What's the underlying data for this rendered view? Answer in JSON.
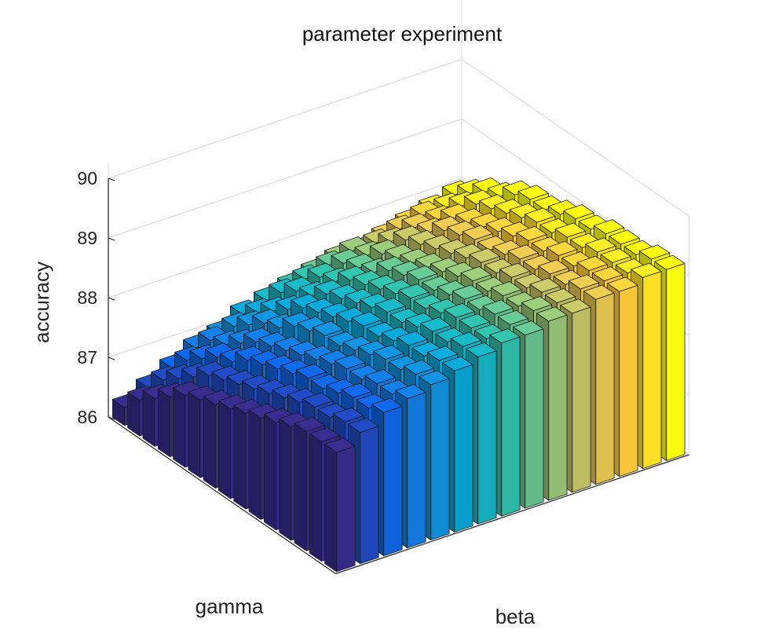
{
  "chart_data": {
    "type": "bar3",
    "title": "parameter experiment",
    "xlabel": "beta",
    "ylabel": "gamma",
    "zlabel": "accuracy",
    "zlim": [
      86,
      90
    ],
    "zticks": [
      "86",
      "87",
      "88",
      "89",
      "90"
    ],
    "grid": true,
    "colormap": "parula",
    "colormap_stops": [
      "#352a87",
      "#0f5cdd",
      "#1481d6",
      "#06a4ca",
      "#2eb7a4",
      "#87bf77",
      "#d1bb59",
      "#fec832",
      "#f9fb0e"
    ],
    "n_beta": 15,
    "n_gamma": 15,
    "values": [
      [
        86.3,
        86.5,
        86.7,
        86.9,
        87.0,
        87.2,
        87.3,
        87.4,
        87.5,
        87.6,
        87.6,
        87.7,
        87.8,
        87.9,
        88.0
      ],
      [
        86.6,
        86.8,
        87.0,
        87.2,
        87.3,
        87.4,
        87.6,
        87.7,
        87.8,
        87.9,
        87.9,
        88.0,
        88.1,
        88.1,
        88.2
      ],
      [
        86.8,
        87.0,
        87.2,
        87.3,
        87.5,
        87.6,
        87.8,
        87.9,
        88.0,
        88.0,
        88.1,
        88.2,
        88.2,
        88.3,
        88.4
      ],
      [
        87.0,
        87.2,
        87.4,
        87.5,
        87.7,
        87.8,
        87.9,
        88.0,
        88.1,
        88.2,
        88.3,
        88.3,
        88.4,
        88.5,
        88.5
      ],
      [
        87.2,
        87.4,
        87.5,
        87.7,
        87.8,
        88.0,
        88.1,
        88.2,
        88.2,
        88.3,
        88.4,
        88.5,
        88.5,
        88.6,
        88.7
      ],
      [
        87.3,
        87.5,
        87.7,
        87.8,
        88.0,
        88.1,
        88.2,
        88.3,
        88.4,
        88.4,
        88.5,
        88.6,
        88.6,
        88.7,
        88.8
      ],
      [
        87.4,
        87.6,
        87.8,
        87.9,
        88.1,
        88.2,
        88.3,
        88.4,
        88.5,
        88.5,
        88.6,
        88.7,
        88.7,
        88.8,
        88.8
      ],
      [
        87.5,
        87.7,
        87.9,
        88.0,
        88.2,
        88.3,
        88.4,
        88.5,
        88.6,
        88.6,
        88.7,
        88.7,
        88.8,
        88.9,
        88.9
      ],
      [
        87.6,
        87.8,
        88.0,
        88.1,
        88.2,
        88.4,
        88.5,
        88.6,
        88.6,
        88.7,
        88.8,
        88.8,
        88.9,
        88.9,
        89.0
      ],
      [
        87.7,
        87.9,
        88.1,
        88.2,
        88.3,
        88.4,
        88.5,
        88.6,
        88.7,
        88.8,
        88.8,
        88.9,
        88.9,
        89.0,
        89.0
      ],
      [
        87.8,
        88.0,
        88.1,
        88.3,
        88.4,
        88.5,
        88.6,
        88.7,
        88.8,
        88.8,
        88.9,
        88.9,
        89.0,
        89.0,
        89.1
      ],
      [
        87.9,
        88.1,
        88.2,
        88.3,
        88.5,
        88.6,
        88.7,
        88.8,
        88.8,
        88.9,
        88.9,
        89.0,
        89.0,
        89.1,
        89.1
      ],
      [
        88.0,
        88.1,
        88.3,
        88.4,
        88.5,
        88.6,
        88.7,
        88.8,
        88.9,
        88.9,
        89.0,
        89.0,
        89.1,
        89.1,
        89.1
      ],
      [
        88.0,
        88.2,
        88.3,
        88.4,
        88.6,
        88.7,
        88.8,
        88.8,
        88.9,
        89.0,
        89.0,
        89.1,
        89.1,
        89.1,
        89.2
      ],
      [
        88.0,
        88.2,
        88.4,
        88.5,
        88.6,
        88.7,
        88.8,
        88.9,
        88.9,
        89.0,
        89.0,
        89.1,
        89.1,
        89.2,
        89.2
      ]
    ]
  }
}
